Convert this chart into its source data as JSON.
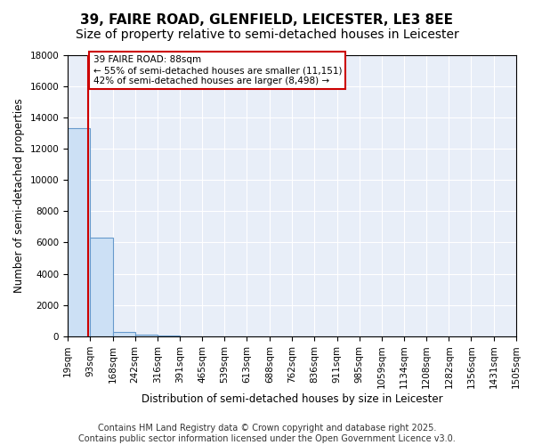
{
  "title": "39, FAIRE ROAD, GLENFIELD, LEICESTER, LE3 8EE",
  "subtitle": "Size of property relative to semi-detached houses in Leicester",
  "xlabel": "Distribution of semi-detached houses by size in Leicester",
  "ylabel": "Number of semi-detached properties",
  "property_size": 88,
  "annotation_line1": "39 FAIRE ROAD: 88sqm",
  "annotation_line2": "← 55% of semi-detached houses are smaller (11,151)",
  "annotation_line3": "42% of semi-detached houses are larger (8,498) →",
  "bin_edges": [
    19,
    93,
    168,
    242,
    316,
    391,
    465,
    539,
    613,
    688,
    762,
    836,
    911,
    985,
    1059,
    1134,
    1208,
    1282,
    1356,
    1431,
    1505
  ],
  "bin_counts": [
    13300,
    6300,
    300,
    100,
    30,
    10,
    5,
    3,
    2,
    2,
    1,
    1,
    1,
    0,
    0,
    0,
    0,
    0,
    0,
    0
  ],
  "bar_color": "#cce0f5",
  "bar_edge_color": "#6699cc",
  "red_line_color": "#cc0000",
  "annotation_box_color": "#cc0000",
  "annotation_text_color": "#000000",
  "annotation_bg": "#ffffff",
  "background_color": "#e8eef8",
  "ylim": [
    0,
    18000
  ],
  "yticks": [
    0,
    2000,
    4000,
    6000,
    8000,
    10000,
    12000,
    14000,
    16000,
    18000
  ],
  "grid_color": "#ffffff",
  "title_fontsize": 11,
  "subtitle_fontsize": 10,
  "axis_label_fontsize": 8.5,
  "tick_fontsize": 7.5,
  "annotation_fontsize": 7.5,
  "footer_text": "Contains HM Land Registry data © Crown copyright and database right 2025.\nContains public sector information licensed under the Open Government Licence v3.0.",
  "footer_fontsize": 7
}
